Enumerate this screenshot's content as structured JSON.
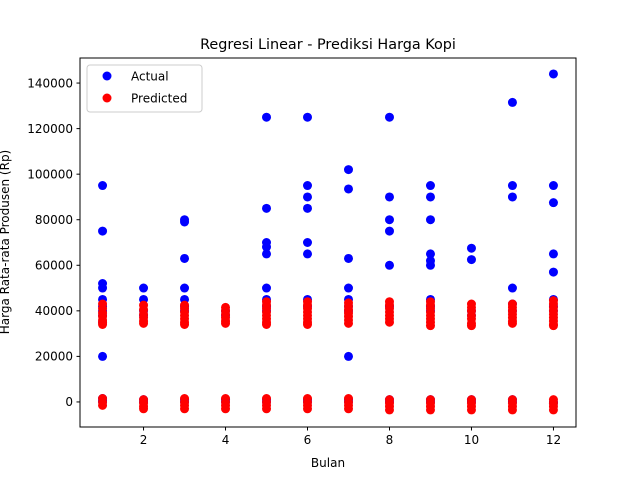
{
  "chart_data": {
    "type": "scatter",
    "title": "Regresi Linear - Prediksi Harga Kopi",
    "xlabel": "Bulan",
    "ylabel": "Harga Rata-rata Produsen (Rp)",
    "xlim": [
      0.45,
      12.55
    ],
    "ylim": [
      -11000,
      151000
    ],
    "xticks": [
      2,
      4,
      6,
      8,
      10,
      12
    ],
    "yticks": [
      0,
      20000,
      40000,
      60000,
      80000,
      100000,
      120000,
      140000
    ],
    "grid": false,
    "legend_position": "top-left",
    "series": [
      {
        "name": "Actual",
        "color": "#0000ff",
        "points": [
          [
            1,
            95000
          ],
          [
            1,
            75000
          ],
          [
            1,
            52000
          ],
          [
            1,
            50000
          ],
          [
            1,
            45000
          ],
          [
            1,
            42000
          ],
          [
            1,
            40000
          ],
          [
            1,
            38000
          ],
          [
            1,
            35000
          ],
          [
            1,
            20000
          ],
          [
            1,
            1500
          ],
          [
            1,
            500
          ],
          [
            1,
            0
          ],
          [
            2,
            50000
          ],
          [
            2,
            45000
          ],
          [
            2,
            40000
          ],
          [
            2,
            38000
          ],
          [
            2,
            1000
          ],
          [
            2,
            0
          ],
          [
            3,
            80000
          ],
          [
            3,
            79000
          ],
          [
            3,
            63000
          ],
          [
            3,
            50000
          ],
          [
            3,
            45000
          ],
          [
            3,
            42000
          ],
          [
            3,
            40000
          ],
          [
            3,
            1000
          ],
          [
            3,
            0
          ],
          [
            4,
            40000
          ],
          [
            4,
            38000
          ],
          [
            4,
            1000
          ],
          [
            4,
            0
          ],
          [
            5,
            125000
          ],
          [
            5,
            85000
          ],
          [
            5,
            70000
          ],
          [
            5,
            68000
          ],
          [
            5,
            65000
          ],
          [
            5,
            50000
          ],
          [
            5,
            45000
          ],
          [
            5,
            42000
          ],
          [
            5,
            40000
          ],
          [
            5,
            1000
          ],
          [
            5,
            0
          ],
          [
            6,
            125000
          ],
          [
            6,
            95000
          ],
          [
            6,
            90000
          ],
          [
            6,
            85000
          ],
          [
            6,
            70000
          ],
          [
            6,
            65000
          ],
          [
            6,
            45000
          ],
          [
            6,
            42000
          ],
          [
            6,
            1000
          ],
          [
            6,
            0
          ],
          [
            7,
            102000
          ],
          [
            7,
            93500
          ],
          [
            7,
            63000
          ],
          [
            7,
            50000
          ],
          [
            7,
            45000
          ],
          [
            7,
            42000
          ],
          [
            7,
            40000
          ],
          [
            7,
            20000
          ],
          [
            7,
            1000
          ],
          [
            7,
            0
          ],
          [
            8,
            125000
          ],
          [
            8,
            90000
          ],
          [
            8,
            80000
          ],
          [
            8,
            75000
          ],
          [
            8,
            60000
          ],
          [
            8,
            42000
          ],
          [
            8,
            1000
          ],
          [
            8,
            0
          ],
          [
            9,
            95000
          ],
          [
            9,
            90000
          ],
          [
            9,
            80000
          ],
          [
            9,
            65000
          ],
          [
            9,
            62000
          ],
          [
            9,
            60000
          ],
          [
            9,
            45000
          ],
          [
            9,
            42000
          ],
          [
            9,
            40000
          ],
          [
            9,
            1000
          ],
          [
            9,
            0
          ],
          [
            10,
            67500
          ],
          [
            10,
            62500
          ],
          [
            10,
            40000
          ],
          [
            10,
            38000
          ],
          [
            10,
            1000
          ],
          [
            10,
            0
          ],
          [
            11,
            131500
          ],
          [
            11,
            95000
          ],
          [
            11,
            90000
          ],
          [
            11,
            50000
          ],
          [
            11,
            43000
          ],
          [
            11,
            40000
          ],
          [
            11,
            1000
          ],
          [
            11,
            0
          ],
          [
            12,
            144000
          ],
          [
            12,
            95000
          ],
          [
            12,
            87500
          ],
          [
            12,
            65000
          ],
          [
            12,
            57000
          ],
          [
            12,
            45000
          ],
          [
            12,
            42000
          ],
          [
            12,
            40000
          ],
          [
            12,
            0
          ],
          [
            12,
            -500
          ]
        ]
      },
      {
        "name": "Predicted",
        "color": "#ff0000",
        "points": [
          [
            1,
            43000
          ],
          [
            1,
            41000
          ],
          [
            1,
            39000
          ],
          [
            1,
            37500
          ],
          [
            1,
            36000
          ],
          [
            1,
            35000
          ],
          [
            1,
            34000
          ],
          [
            1,
            1500
          ],
          [
            1,
            0
          ],
          [
            1,
            -1500
          ],
          [
            2,
            42500
          ],
          [
            2,
            40500
          ],
          [
            2,
            38500
          ],
          [
            2,
            37000
          ],
          [
            2,
            35500
          ],
          [
            2,
            34500
          ],
          [
            2,
            1000
          ],
          [
            2,
            -500
          ],
          [
            2,
            -2000
          ],
          [
            2,
            -3000
          ],
          [
            3,
            42500
          ],
          [
            3,
            41000
          ],
          [
            3,
            39500
          ],
          [
            3,
            38000
          ],
          [
            3,
            36500
          ],
          [
            3,
            35000
          ],
          [
            3,
            34000
          ],
          [
            3,
            1500
          ],
          [
            3,
            0
          ],
          [
            3,
            -1500
          ],
          [
            3,
            -3000
          ],
          [
            4,
            41500
          ],
          [
            4,
            40000
          ],
          [
            4,
            38500
          ],
          [
            4,
            37000
          ],
          [
            4,
            35500
          ],
          [
            4,
            34500
          ],
          [
            4,
            1500
          ],
          [
            4,
            0
          ],
          [
            4,
            -1500
          ],
          [
            4,
            -3000
          ],
          [
            5,
            44000
          ],
          [
            5,
            42500
          ],
          [
            5,
            41000
          ],
          [
            5,
            39500
          ],
          [
            5,
            38000
          ],
          [
            5,
            36500
          ],
          [
            5,
            35000
          ],
          [
            5,
            34000
          ],
          [
            5,
            1500
          ],
          [
            5,
            0
          ],
          [
            5,
            -1500
          ],
          [
            5,
            -3000
          ],
          [
            6,
            44000
          ],
          [
            6,
            42500
          ],
          [
            6,
            41000
          ],
          [
            6,
            39500
          ],
          [
            6,
            38000
          ],
          [
            6,
            36500
          ],
          [
            6,
            35000
          ],
          [
            6,
            34000
          ],
          [
            6,
            1500
          ],
          [
            6,
            0
          ],
          [
            6,
            -1500
          ],
          [
            6,
            -3000
          ],
          [
            7,
            43500
          ],
          [
            7,
            42000
          ],
          [
            7,
            40500
          ],
          [
            7,
            39000
          ],
          [
            7,
            37500
          ],
          [
            7,
            36000
          ],
          [
            7,
            34500
          ],
          [
            7,
            1500
          ],
          [
            7,
            0
          ],
          [
            7,
            -1500
          ],
          [
            7,
            -3000
          ],
          [
            8,
            44000
          ],
          [
            8,
            42500
          ],
          [
            8,
            41000
          ],
          [
            8,
            39500
          ],
          [
            8,
            38000
          ],
          [
            8,
            36500
          ],
          [
            8,
            35000
          ],
          [
            8,
            1000
          ],
          [
            8,
            -500
          ],
          [
            8,
            -2000
          ],
          [
            8,
            -3500
          ],
          [
            9,
            44000
          ],
          [
            9,
            42500
          ],
          [
            9,
            41000
          ],
          [
            9,
            39500
          ],
          [
            9,
            38000
          ],
          [
            9,
            36500
          ],
          [
            9,
            35000
          ],
          [
            9,
            33500
          ],
          [
            9,
            1000
          ],
          [
            9,
            -500
          ],
          [
            9,
            -2000
          ],
          [
            9,
            -3500
          ],
          [
            10,
            43000
          ],
          [
            10,
            41500
          ],
          [
            10,
            40000
          ],
          [
            10,
            38000
          ],
          [
            10,
            36500
          ],
          [
            10,
            34500
          ],
          [
            10,
            33500
          ],
          [
            10,
            1000
          ],
          [
            10,
            -500
          ],
          [
            10,
            -2000
          ],
          [
            10,
            -3500
          ],
          [
            11,
            43000
          ],
          [
            11,
            41500
          ],
          [
            11,
            40000
          ],
          [
            11,
            38500
          ],
          [
            11,
            37000
          ],
          [
            11,
            35500
          ],
          [
            11,
            34500
          ],
          [
            11,
            1000
          ],
          [
            11,
            -500
          ],
          [
            11,
            -2000
          ],
          [
            11,
            -3500
          ],
          [
            12,
            44500
          ],
          [
            12,
            43000
          ],
          [
            12,
            41500
          ],
          [
            12,
            40000
          ],
          [
            12,
            38500
          ],
          [
            12,
            37000
          ],
          [
            12,
            35500
          ],
          [
            12,
            34000
          ],
          [
            12,
            33500
          ],
          [
            12,
            1000
          ],
          [
            12,
            -500
          ],
          [
            12,
            -2000
          ],
          [
            12,
            -3500
          ]
        ]
      }
    ]
  }
}
